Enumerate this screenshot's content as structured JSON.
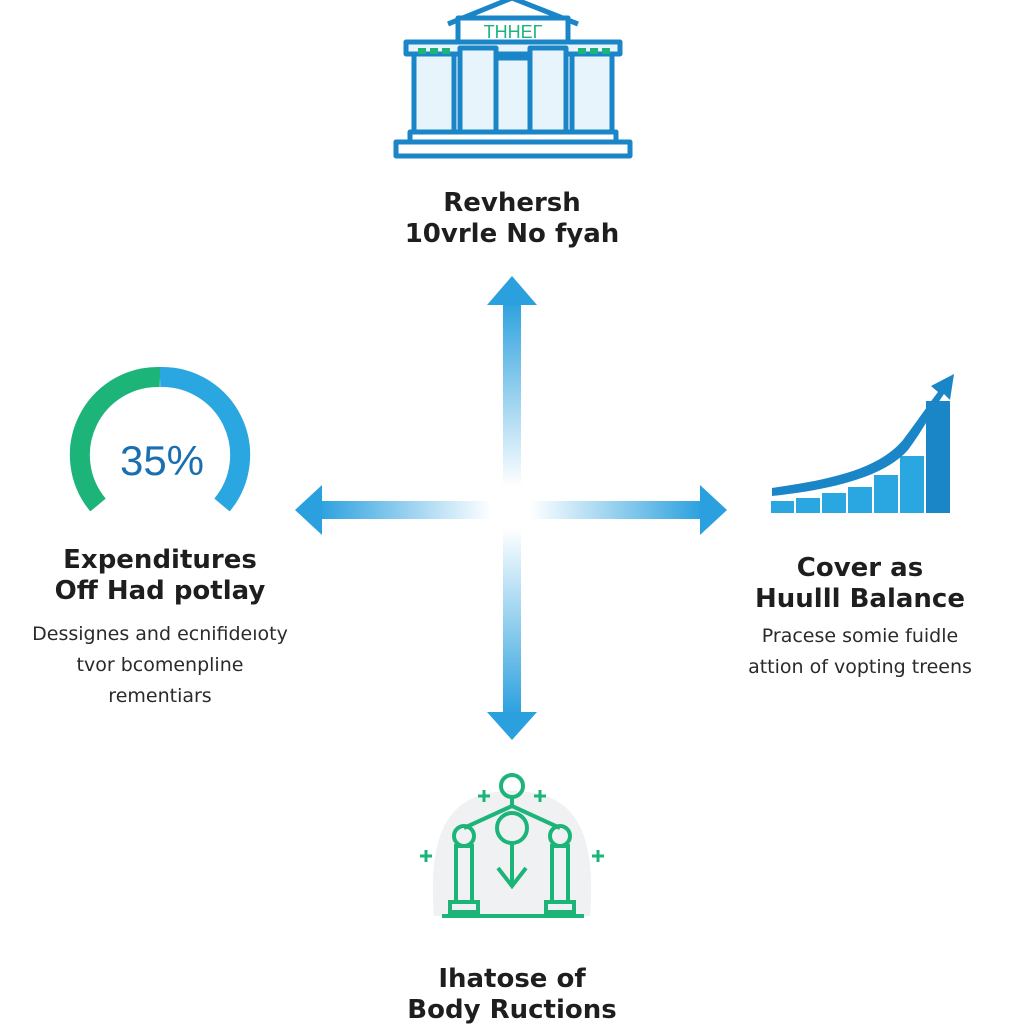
{
  "colors": {
    "blue": "#1a86c7",
    "light_blue": "#2aa6e0",
    "green": "#1db47a",
    "text": "#1e1e1e"
  },
  "top": {
    "icon": "bank-building-icon",
    "sign_text": "THHEГ",
    "title_line1": "Revhersh",
    "title_line2": "10vrle No fyah"
  },
  "left": {
    "icon": "gauge-icon",
    "gauge_value": "35%",
    "gauge_percent": 35,
    "title_line1": "Expenditures",
    "title_line2": "Off Had potlay",
    "desc_line1": "Dessignes and ecnifideıoty",
    "desc_line2": "tvor bcomenpline",
    "desc_line3": "rementiars"
  },
  "right": {
    "icon": "growth-chart-icon",
    "title_line1": "Cover as",
    "title_line2": "Huulll Balance",
    "desc_line1": "Pracese somie fuidle",
    "desc_line2": "attion of vopting treens"
  },
  "bottom": {
    "icon": "balance-pillars-icon",
    "title_line1": "Ihatose of",
    "title_line2": "Body Ructions"
  }
}
